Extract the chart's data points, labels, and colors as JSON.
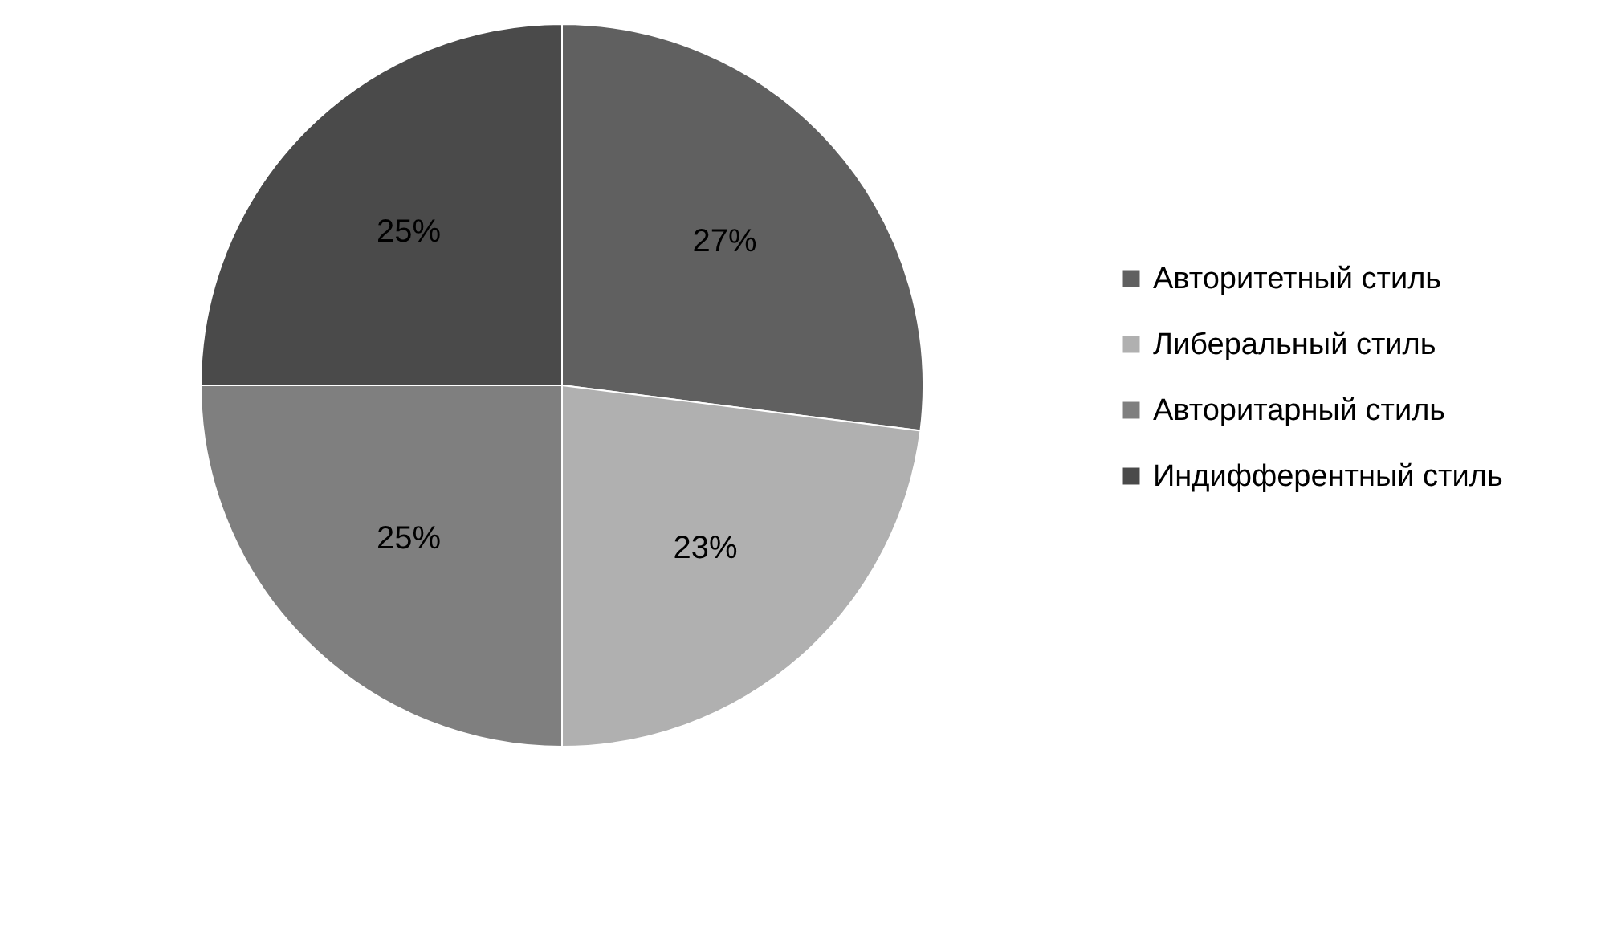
{
  "chart_data": {
    "type": "pie",
    "categories": [
      "Авторитетный стиль",
      "Либеральный стиль",
      "Авторитарный стиль",
      "Индифферентный стиль"
    ],
    "values": [
      27,
      23,
      25,
      25
    ],
    "colors": [
      "#606060",
      "#b0b0b0",
      "#7f7f7f",
      "#4a4a4a"
    ],
    "value_labels": [
      "27%",
      "23%",
      "25%",
      "25%"
    ],
    "legend": "right"
  }
}
